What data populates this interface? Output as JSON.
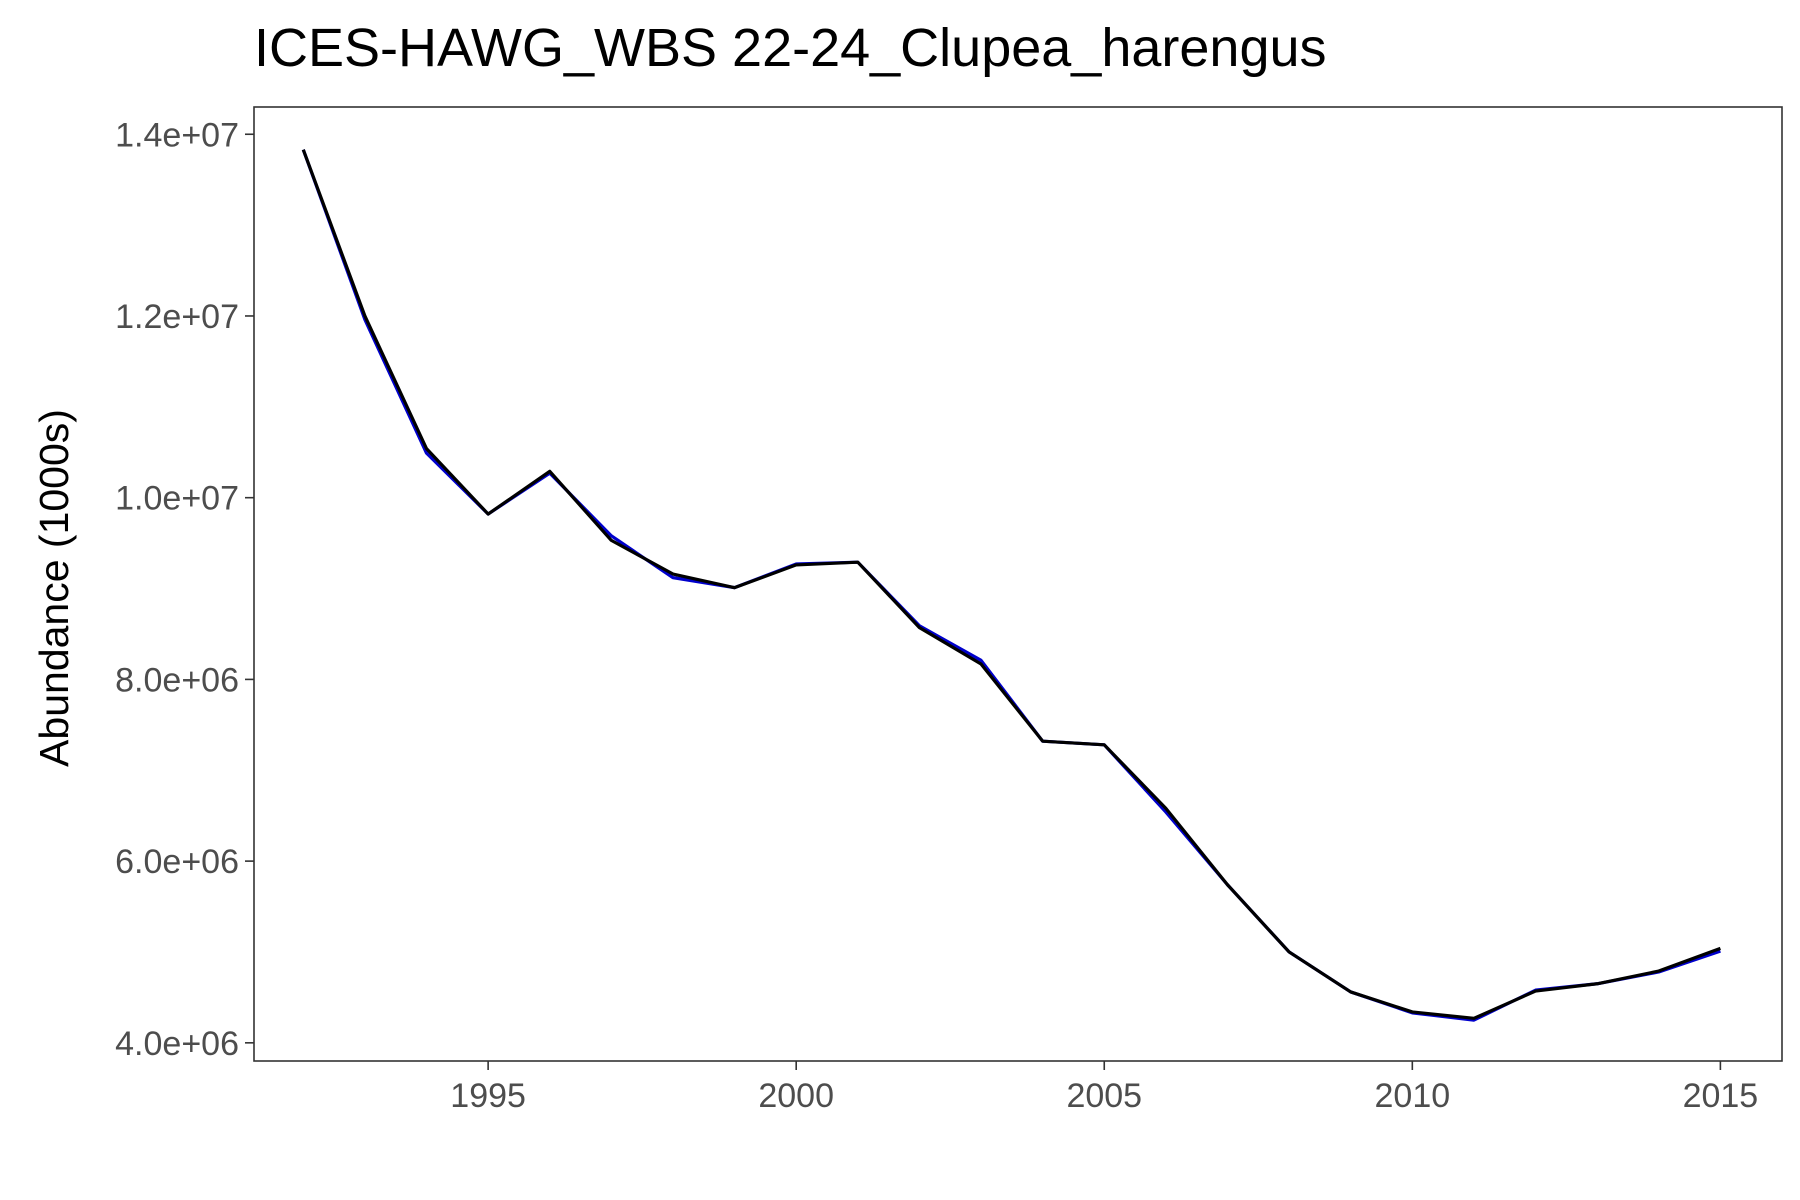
{
  "chart_data": {
    "type": "line",
    "title": "ICES-HAWG_WBS 22-24_Clupea_harengus",
    "xlabel": "",
    "ylabel": "Abundance (1000s)",
    "xlim": [
      1991.2,
      2016.0
    ],
    "ylim": [
      3800000,
      14300000
    ],
    "x_ticks": [
      1995,
      2000,
      2005,
      2010,
      2015
    ],
    "x_tick_labels": [
      "1995",
      "2000",
      "2005",
      "2010",
      "2015"
    ],
    "y_ticks": [
      4000000,
      6000000,
      8000000,
      10000000,
      12000000,
      14000000
    ],
    "y_tick_labels": [
      "4.0e+06",
      "6.0e+06",
      "8.0e+06",
      "1.0e+07",
      "1.2e+07",
      "1.4e+07"
    ],
    "grid": false,
    "legend": "none",
    "x": [
      1992,
      1993,
      1994,
      1995,
      1996,
      1997,
      1998,
      1999,
      2000,
      2001,
      2002,
      2003,
      2004,
      2005,
      2006,
      2007,
      2008,
      2009,
      2010,
      2011,
      2012,
      2013,
      2014,
      2015
    ],
    "series": [
      {
        "color": "#0000cc",
        "values": [
          13830000,
          11960000,
          10490000,
          9820000,
          10270000,
          9580000,
          9120000,
          9010000,
          9270000,
          9290000,
          8590000,
          8210000,
          7320000,
          7280000,
          6540000,
          5740000,
          5000000,
          4560000,
          4330000,
          4250000,
          4580000,
          4650000,
          4780000,
          5010000
        ]
      },
      {
        "color": "#000000",
        "values": [
          13830000,
          12000000,
          10540000,
          9820000,
          10290000,
          9530000,
          9160000,
          9010000,
          9260000,
          9290000,
          8570000,
          8170000,
          7320000,
          7280000,
          6580000,
          5740000,
          5000000,
          4560000,
          4340000,
          4270000,
          4570000,
          4650000,
          4790000,
          5040000
        ]
      }
    ]
  },
  "colors": {
    "panel_border": "#333333",
    "tick_mark": "#333333",
    "tick_label": "#4d4d4d"
  }
}
